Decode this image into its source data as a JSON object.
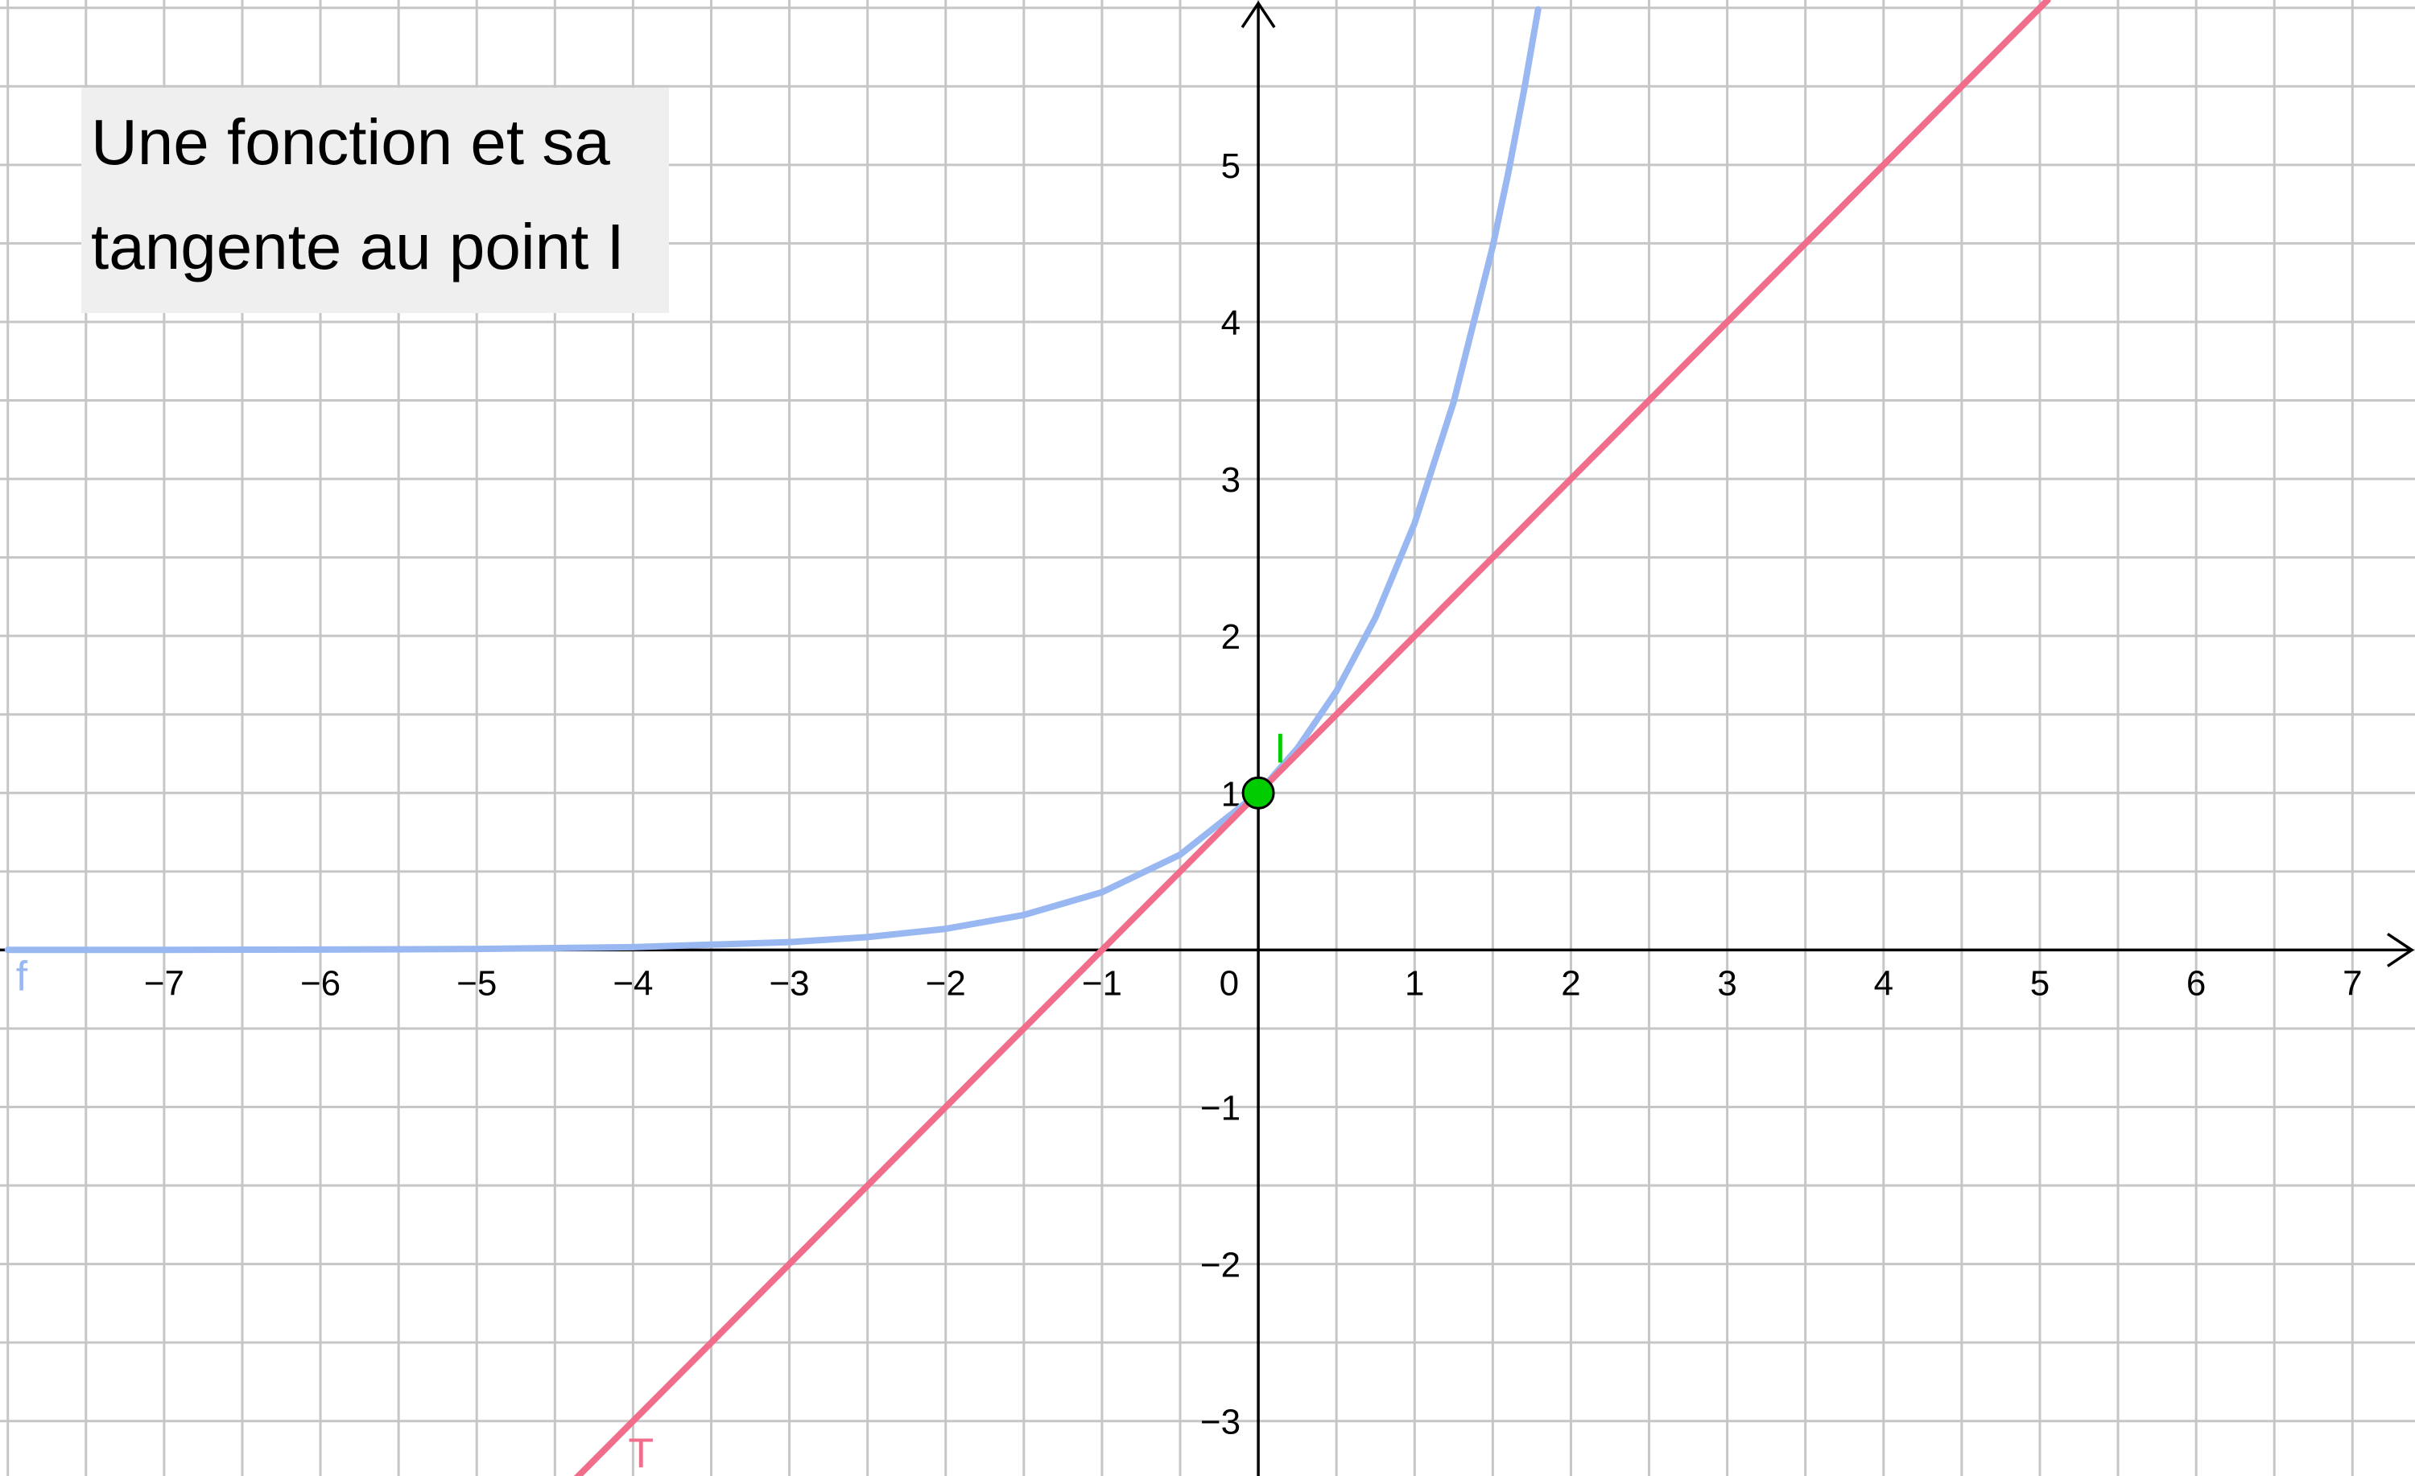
{
  "title": {
    "line1": "Une fonction et sa",
    "line2": "tangente au point I"
  },
  "chart_data": {
    "type": "line",
    "xlim": [
      -8.05,
      7.4
    ],
    "ylim": [
      -3.35,
      6.05
    ],
    "grid": true,
    "x_ticks": [
      {
        "value": -7,
        "label": "−7"
      },
      {
        "value": -6,
        "label": "−6"
      },
      {
        "value": -5,
        "label": "−5"
      },
      {
        "value": -4,
        "label": "−4"
      },
      {
        "value": -3,
        "label": "−3"
      },
      {
        "value": -2,
        "label": "−2"
      },
      {
        "value": -1,
        "label": "−1"
      },
      {
        "value": 1,
        "label": "1"
      },
      {
        "value": 2,
        "label": "2"
      },
      {
        "value": 3,
        "label": "3"
      },
      {
        "value": 4,
        "label": "4"
      },
      {
        "value": 5,
        "label": "5"
      },
      {
        "value": 6,
        "label": "6"
      },
      {
        "value": 7,
        "label": "7"
      }
    ],
    "y_ticks": [
      {
        "value": -3,
        "label": "−3"
      },
      {
        "value": -2,
        "label": "−2"
      },
      {
        "value": -1,
        "label": "−1"
      },
      {
        "value": 1,
        "label": "1"
      },
      {
        "value": 2,
        "label": "2"
      },
      {
        "value": 3,
        "label": "3"
      },
      {
        "value": 4,
        "label": "4"
      },
      {
        "value": 5,
        "label": "5"
      }
    ],
    "origin_label": "0",
    "series": [
      {
        "name": "f",
        "color": "#99b8f2",
        "x": [
          -8,
          -7,
          -6,
          -5,
          -4,
          -3,
          -2.5,
          -2,
          -1.5,
          -1,
          -0.5,
          0,
          0.25,
          0.5,
          0.75,
          1,
          1.25,
          1.5,
          1.6,
          1.7,
          1.79
        ],
        "y": [
          0.0003,
          0.0009,
          0.0025,
          0.0067,
          0.018,
          0.05,
          0.082,
          0.135,
          0.223,
          0.368,
          0.607,
          1,
          1.284,
          1.649,
          2.117,
          2.718,
          3.49,
          4.482,
          4.953,
          5.474,
          5.99
        ]
      },
      {
        "name": "T",
        "color": "#f06e8c",
        "x": [
          -4.44,
          5.05
        ],
        "y": [
          -3.44,
          6.05
        ]
      }
    ],
    "points": [
      {
        "name": "I",
        "x": 0,
        "y": 1,
        "color": "#00cc00"
      }
    ]
  }
}
